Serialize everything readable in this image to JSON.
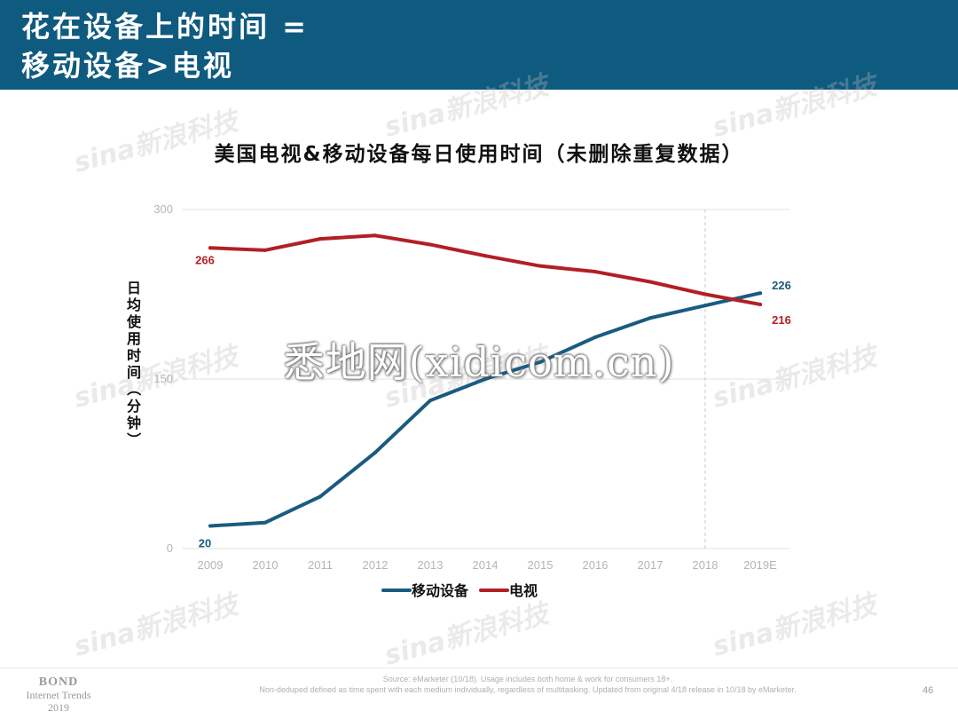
{
  "header": {
    "line1": "花在设备上的时间 =",
    "line2": "移动设备>电视"
  },
  "watermark": {
    "text": "悉地网(xidicom.cn)",
    "brand": "sina新浪科技"
  },
  "chart_data": {
    "type": "line",
    "title": "美国电视&移动设备每日使用时间（未删除重复数据）",
    "ylabel": "日均使用时间（分钟）",
    "xlabel": "",
    "ylim": [
      0,
      300
    ],
    "yticks": [
      "0",
      "150",
      "300"
    ],
    "categories": [
      "2009",
      "2010",
      "2011",
      "2012",
      "2013",
      "2014",
      "2015",
      "2016",
      "2017",
      "2018",
      "2019E"
    ],
    "series": [
      {
        "name": "移动设备",
        "color": "#1a5b80",
        "values": [
          20,
          23,
          46,
          85,
          131,
          150,
          165,
          187,
          204,
          215,
          226
        ],
        "labels": {
          "first": "20",
          "last": "226"
        }
      },
      {
        "name": "电视",
        "color": "#b21f24",
        "values": [
          266,
          264,
          274,
          277,
          269,
          259,
          250,
          245,
          236,
          225,
          216
        ],
        "labels": {
          "first": "266",
          "last": "216"
        }
      }
    ],
    "projection_start": "2018",
    "grid": true,
    "legend": "bottom"
  },
  "footer": {
    "brand_line1": "BOND",
    "brand_line2": "Internet Trends",
    "brand_line3": "2019",
    "source_line1": "Source: eMarketer (10/18). Usage includes both home & work for consumers 18+.",
    "source_line2": "Non-deduped defined as time spent with each medium individually, regardless of multitasking. Updated from original 4/18 release in 10/18 by eMarketer.",
    "page": "46"
  }
}
